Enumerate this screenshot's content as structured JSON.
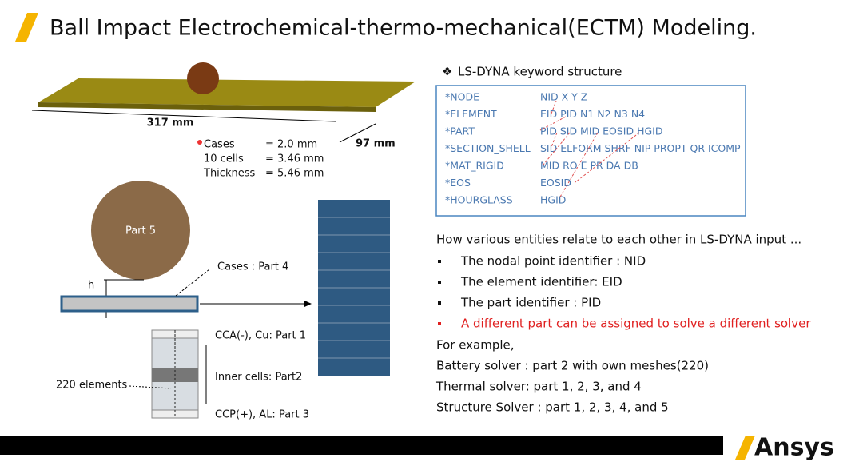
{
  "header": {
    "title": "Ball Impact Electrochemical-thermo-mechanical(ECTM) Modeling."
  },
  "figure": {
    "length": "317 mm",
    "width": "97 mm",
    "dims": [
      {
        "name": "Cases",
        "value": "= 2.0   mm"
      },
      {
        "name": "10 cells",
        "value": "= 3.46 mm"
      },
      {
        "name": "Thickness",
        "value": "= 5.46 mm"
      }
    ],
    "ball": "Part 5",
    "gap": "h",
    "cases": "Cases : Part 4",
    "part1": "CCA(-), Cu: Part 1",
    "part2": "Inner cells: Part2",
    "part3": "CCP(+), AL: Part 3",
    "elements": "220 elements"
  },
  "keywords": {
    "heading": "LS-DYNA keyword structure",
    "rows": [
      [
        "*NODE",
        "NID  X  Y  Z"
      ],
      [
        "*ELEMENT",
        "EID PID N1 N2 N3 N4"
      ],
      [
        "*PART",
        "PID SID MID EOSID HGID"
      ],
      [
        "*SECTION_SHELL",
        "SID ELFORM SHRF NIP PROPT QR ICOMP"
      ],
      [
        "*MAT_RIGID",
        "MID RO E PR DA DB"
      ],
      [
        "*EOS",
        "EOSID"
      ],
      [
        "*HOURGLASS",
        "HGID"
      ]
    ]
  },
  "relations": {
    "heading": "How various entities relate to each other in LS-DYNA input ...",
    "bullets": [
      "The nodal point identifier : NID",
      "The element identifier: EID",
      "The part identifier : PID",
      "A different part can be assigned to solve a different solver"
    ],
    "examples": [
      "For example,",
      "Battery solver : part 2 with own meshes(220)",
      "Thermal solver: part 1, 2, 3, and 4",
      "Structure Solver : part 1, 2, 3, 4, and 5"
    ]
  },
  "footer": {
    "logo": "Ansys"
  }
}
